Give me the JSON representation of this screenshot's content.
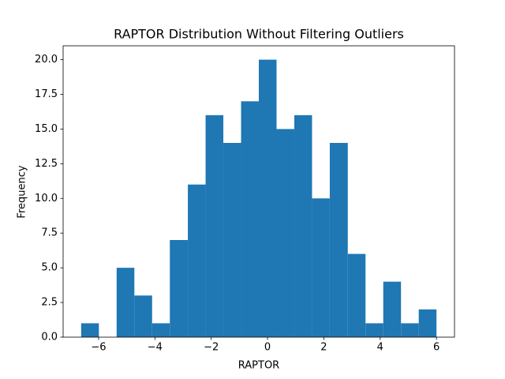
{
  "chart_data": {
    "type": "histogram",
    "title": "RAPTOR Distribution Without Filtering Outliers",
    "xlabel": "RAPTOR",
    "ylabel": "Frequency",
    "bins": [
      -6.62,
      -5.99,
      -5.36,
      -4.73,
      -4.1,
      -3.47,
      -2.83,
      -2.2,
      -1.57,
      -0.94,
      -0.31,
      0.32,
      0.95,
      1.58,
      2.21,
      2.85,
      3.48,
      4.11,
      4.74,
      5.37,
      6.0
    ],
    "values": [
      1,
      0,
      5,
      3,
      1,
      7,
      11,
      16,
      14,
      17,
      20,
      15,
      16,
      10,
      14,
      6,
      1,
      4,
      1,
      2
    ],
    "color": "#1f77b4",
    "xlim": [
      -7.26,
      6.64
    ],
    "ylim": [
      0,
      21
    ],
    "xticks": [
      {
        "value": -6,
        "label": "−6"
      },
      {
        "value": -4,
        "label": "−4"
      },
      {
        "value": -2,
        "label": "−2"
      },
      0,
      2,
      4,
      6
    ],
    "yticks": [
      {
        "value": 0,
        "label": "0.0"
      },
      {
        "value": 2.5,
        "label": "2.5"
      },
      {
        "value": 5,
        "label": "5.0"
      },
      {
        "value": 7.5,
        "label": "7.5"
      },
      {
        "value": 10,
        "label": "10.0"
      },
      {
        "value": 12.5,
        "label": "12.5"
      },
      {
        "value": 15,
        "label": "15.0"
      },
      {
        "value": 17.5,
        "label": "17.5"
      },
      {
        "value": 20,
        "label": "20.0"
      }
    ]
  }
}
